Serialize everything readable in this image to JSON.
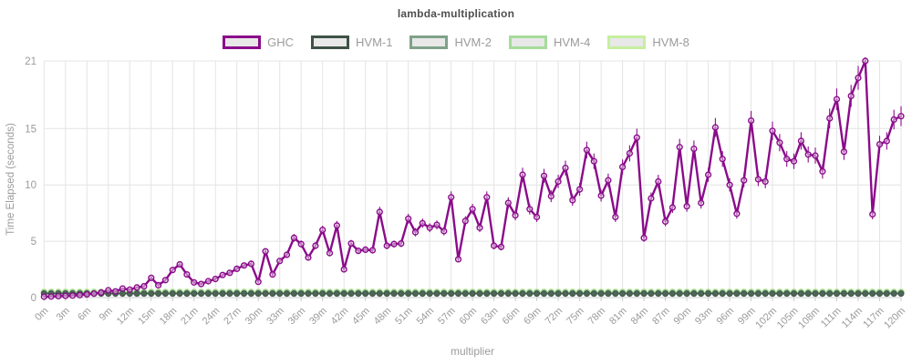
{
  "title": "lambda-multiplication",
  "legend": {
    "swatch_fill": "#e8e8e8",
    "items": [
      {
        "label": "GHC",
        "color": "#8a0b8a"
      },
      {
        "label": "HVM-1",
        "color": "#3e5245"
      },
      {
        "label": "HVM-2",
        "color": "#7fa288"
      },
      {
        "label": "HVM-4",
        "color": "#a5dc9b"
      },
      {
        "label": "HVM-8",
        "color": "#c6ef9f"
      }
    ]
  },
  "chart_data": {
    "type": "line",
    "title": "lambda-multiplication",
    "xlabel": "multiplier",
    "ylabel": "Time Elapsed (seconds)",
    "x_unit": "m",
    "xlim": [
      0,
      120
    ],
    "ylim": [
      0,
      21
    ],
    "x_start": 0,
    "x_step": 1,
    "x_count": 121,
    "x_tick_step": 3,
    "y_ticks": [
      0,
      5,
      10,
      15,
      21
    ],
    "grid": true,
    "legend_position": "top",
    "colors": {
      "grid": "#e4e4e4",
      "axis_line": "#cccccc",
      "tick_text": "#9b9b9b",
      "title_text": "#4f4f4f"
    },
    "series": [
      {
        "name": "GHC",
        "color": "#8a0b8a",
        "marker": "open-circle",
        "error_base": 0.08,
        "error_rel": 0.05,
        "values": [
          0.08,
          0.1,
          0.13,
          0.15,
          0.18,
          0.22,
          0.28,
          0.35,
          0.45,
          0.65,
          0.55,
          0.8,
          0.7,
          0.9,
          1.0,
          1.75,
          1.1,
          1.55,
          2.45,
          2.95,
          2.05,
          1.35,
          1.2,
          1.45,
          1.65,
          2.0,
          2.2,
          2.55,
          2.85,
          3.0,
          1.4,
          4.1,
          2.05,
          3.25,
          3.8,
          5.3,
          4.75,
          3.55,
          4.6,
          6.0,
          3.95,
          6.4,
          2.5,
          4.8,
          4.15,
          4.25,
          4.2,
          7.6,
          4.6,
          4.75,
          4.8,
          7.0,
          5.8,
          6.6,
          6.2,
          6.45,
          5.9,
          8.9,
          3.4,
          6.8,
          7.85,
          6.2,
          8.9,
          4.6,
          4.5,
          8.4,
          7.3,
          10.9,
          7.85,
          7.15,
          10.8,
          9.0,
          10.3,
          11.5,
          8.65,
          9.6,
          13.1,
          12.1,
          9.05,
          10.4,
          7.15,
          11.6,
          12.8,
          14.2,
          5.3,
          8.8,
          10.3,
          6.75,
          8.0,
          13.35,
          8.1,
          13.2,
          8.4,
          10.9,
          15.1,
          12.3,
          10.0,
          7.45,
          10.4,
          15.7,
          10.5,
          10.3,
          14.8,
          13.75,
          12.3,
          12.1,
          13.9,
          12.7,
          12.6,
          11.2,
          15.9,
          17.6,
          12.95,
          17.9,
          19.5,
          21.0,
          7.4,
          13.6,
          13.9,
          15.8,
          16.1
        ]
      },
      {
        "name": "HVM-1",
        "color": "#3e5245",
        "marker_fill": "#4d6757",
        "marker": "dot",
        "constant_value": 0.35
      },
      {
        "name": "HVM-2",
        "color": "#7fa288",
        "marker_fill": "#8aac93",
        "marker": "dot",
        "constant_value": 0.4
      },
      {
        "name": "HVM-4",
        "color": "#a5dc9b",
        "marker_fill": "#b2e2a6",
        "marker": "dot",
        "constant_value": 0.45
      },
      {
        "name": "HVM-8",
        "color": "#c6ef9f",
        "marker_fill": "#d0f2ab",
        "marker": "dot",
        "constant_value": 0.5
      }
    ]
  }
}
